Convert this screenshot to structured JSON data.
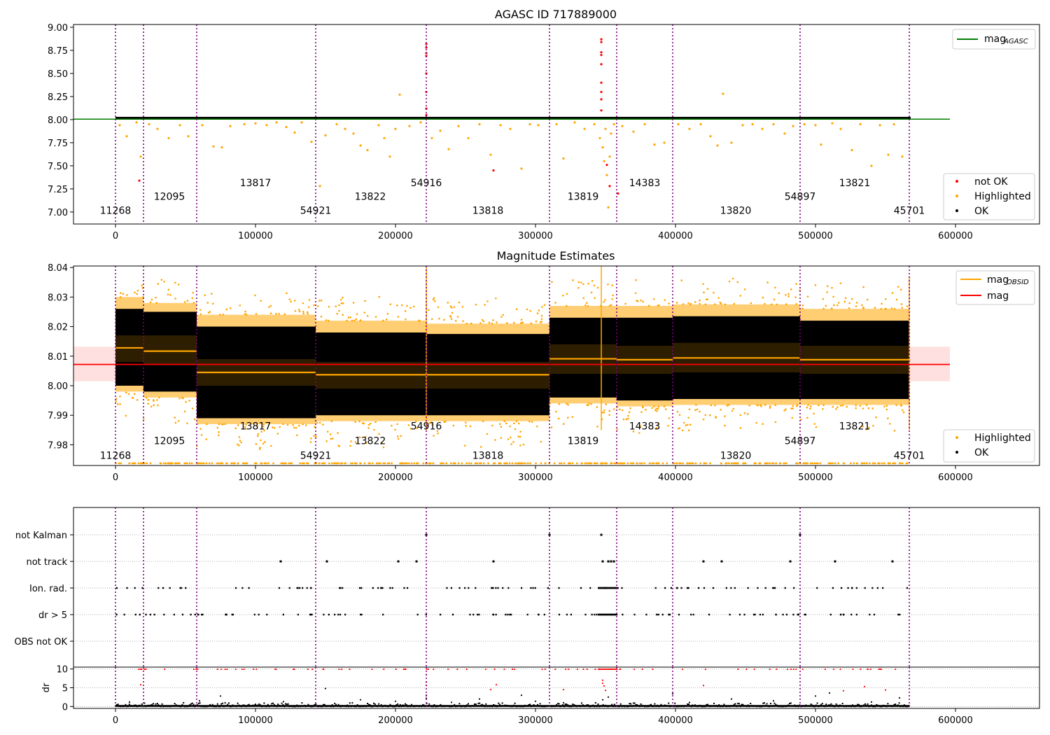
{
  "chart_data": [
    {
      "type": "scatter",
      "title": "AGASC ID 717889000",
      "xlim": [
        -30000,
        660000
      ],
      "ylim": [
        6.87,
        9.03
      ],
      "xticks": [
        0,
        100000,
        200000,
        300000,
        400000,
        500000,
        600000
      ],
      "xtick_labels": [
        "0",
        "100000",
        "200000",
        "300000",
        "400000",
        "500000",
        "600000"
      ],
      "yticks": [
        7.0,
        7.25,
        7.5,
        7.75,
        8.0,
        8.25,
        8.5,
        8.75,
        9.0
      ],
      "ytick_labels": [
        "7.00",
        "7.25",
        "7.50",
        "7.75",
        "8.00",
        "8.25",
        "8.50",
        "8.75",
        "9.00"
      ],
      "grid": false,
      "x_extent": [
        0,
        568000
      ],
      "ok_band": [
        8.0,
        8.03
      ],
      "line_legend": [
        {
          "label": "mag",
          "sub": "AGASC",
          "color": "#008000",
          "y": 8.005,
          "x": [
            -30000,
            596000
          ]
        }
      ],
      "point_legend": [
        {
          "label": "not OK",
          "color": "#ff0000"
        },
        {
          "label": "Highlighted",
          "color": "#ffa500"
        },
        {
          "label": "OK",
          "color": "#000000"
        }
      ],
      "highlighted_points": [
        [
          3000,
          7.94
        ],
        [
          8000,
          7.82
        ],
        [
          15000,
          7.97
        ],
        [
          18000,
          7.6
        ],
        [
          24000,
          7.95
        ],
        [
          30000,
          7.9
        ],
        [
          38000,
          7.8
        ],
        [
          46000,
          7.94
        ],
        [
          52000,
          7.82
        ],
        [
          62000,
          7.94
        ],
        [
          70000,
          7.71
        ],
        [
          76000,
          7.7
        ],
        [
          82000,
          7.93
        ],
        [
          92000,
          7.95
        ],
        [
          100000,
          7.96
        ],
        [
          108000,
          7.94
        ],
        [
          115000,
          7.97
        ],
        [
          122000,
          7.92
        ],
        [
          128000,
          7.86
        ],
        [
          133000,
          7.97
        ],
        [
          140000,
          7.76
        ],
        [
          146000,
          7.28
        ],
        [
          150000,
          7.83
        ],
        [
          158000,
          7.95
        ],
        [
          164000,
          7.9
        ],
        [
          170000,
          7.85
        ],
        [
          175000,
          7.72
        ],
        [
          180000,
          7.67
        ],
        [
          188000,
          7.94
        ],
        [
          192000,
          7.8
        ],
        [
          196000,
          7.6
        ],
        [
          200000,
          7.9
        ],
        [
          203000,
          8.27
        ],
        [
          210000,
          7.93
        ],
        [
          218000,
          7.97
        ],
        [
          226000,
          7.8
        ],
        [
          232000,
          7.88
        ],
        [
          238000,
          7.68
        ],
        [
          245000,
          7.93
        ],
        [
          252000,
          7.8
        ],
        [
          260000,
          7.95
        ],
        [
          268000,
          7.62
        ],
        [
          275000,
          7.94
        ],
        [
          282000,
          7.9
        ],
        [
          290000,
          7.47
        ],
        [
          296000,
          7.95
        ],
        [
          302000,
          7.94
        ],
        [
          315000,
          7.95
        ],
        [
          320000,
          7.58
        ],
        [
          328000,
          7.97
        ],
        [
          335000,
          7.9
        ],
        [
          342000,
          7.95
        ],
        [
          346000,
          7.8
        ],
        [
          348000,
          7.7
        ],
        [
          349000,
          7.55
        ],
        [
          350000,
          7.9
        ],
        [
          351000,
          7.4
        ],
        [
          352000,
          7.05
        ],
        [
          353000,
          7.6
        ],
        [
          354000,
          7.85
        ],
        [
          356000,
          7.95
        ],
        [
          362000,
          7.93
        ],
        [
          370000,
          7.87
        ],
        [
          378000,
          7.95
        ],
        [
          385000,
          7.73
        ],
        [
          392000,
          7.75
        ],
        [
          402000,
          7.95
        ],
        [
          410000,
          7.9
        ],
        [
          418000,
          7.95
        ],
        [
          425000,
          7.82
        ],
        [
          430000,
          7.72
        ],
        [
          434000,
          8.28
        ],
        [
          440000,
          7.75
        ],
        [
          448000,
          7.94
        ],
        [
          455000,
          7.95
        ],
        [
          462000,
          7.9
        ],
        [
          470000,
          7.95
        ],
        [
          478000,
          7.85
        ],
        [
          484000,
          7.93
        ],
        [
          492000,
          7.95
        ],
        [
          500000,
          7.94
        ],
        [
          504000,
          7.73
        ],
        [
          512000,
          7.96
        ],
        [
          518000,
          7.9
        ],
        [
          526000,
          7.67
        ],
        [
          532000,
          7.95
        ],
        [
          540000,
          7.5
        ],
        [
          546000,
          7.94
        ],
        [
          552000,
          7.62
        ],
        [
          556000,
          7.95
        ],
        [
          562000,
          7.6
        ]
      ],
      "notok_points": [
        [
          17000,
          7.34
        ],
        [
          270000,
          7.45
        ],
        [
          222000,
          8.82
        ],
        [
          222000,
          8.78
        ],
        [
          222000,
          8.72
        ],
        [
          222000,
          8.69
        ],
        [
          222000,
          8.5
        ],
        [
          222000,
          8.3
        ],
        [
          222000,
          8.12
        ],
        [
          222000,
          8.05
        ],
        [
          347000,
          8.87
        ],
        [
          347000,
          8.84
        ],
        [
          347000,
          8.73
        ],
        [
          347000,
          8.7
        ],
        [
          347000,
          8.6
        ],
        [
          347000,
          8.4
        ],
        [
          347000,
          8.3
        ],
        [
          347000,
          8.22
        ],
        [
          347000,
          8.1
        ],
        [
          351000,
          7.51
        ],
        [
          353000,
          7.28
        ],
        [
          359000,
          7.2
        ]
      ],
      "obsid_lines_x": [
        0,
        20000,
        58000,
        143000,
        222000,
        310000,
        358000,
        398000,
        489000,
        567000
      ],
      "obsid_labels": [
        {
          "x": 0,
          "y": 6.98,
          "text": "11268"
        },
        {
          "x": 38500,
          "y": 7.13,
          "text": "12095"
        },
        {
          "x": 100000,
          "y": 7.28,
          "text": "13817"
        },
        {
          "x": 143000,
          "y": 6.98,
          "text": "54921"
        },
        {
          "x": 182000,
          "y": 7.13,
          "text": "13822"
        },
        {
          "x": 222000,
          "y": 7.28,
          "text": "54916"
        },
        {
          "x": 266000,
          "y": 6.98,
          "text": "13818"
        },
        {
          "x": 334000,
          "y": 7.13,
          "text": "13819"
        },
        {
          "x": 378000,
          "y": 7.28,
          "text": "14383"
        },
        {
          "x": 443000,
          "y": 6.98,
          "text": "13820"
        },
        {
          "x": 489000,
          "y": 7.13,
          "text": "54897"
        },
        {
          "x": 528000,
          "y": 7.28,
          "text": "13821"
        },
        {
          "x": 567000,
          "y": 6.98,
          "text": "45701"
        }
      ]
    },
    {
      "type": "scatter",
      "title": "Magnitude Estimates",
      "xlim": [
        -30000,
        660000
      ],
      "ylim": [
        7.973,
        8.0405
      ],
      "xticks": [
        0,
        100000,
        200000,
        300000,
        400000,
        500000,
        600000
      ],
      "xtick_labels": [
        "0",
        "100000",
        "200000",
        "300000",
        "400000",
        "500000",
        "600000"
      ],
      "yticks": [
        7.98,
        7.99,
        8.0,
        8.01,
        8.02,
        8.03,
        8.04
      ],
      "ytick_labels": [
        "7.98",
        "7.99",
        "8.00",
        "8.01",
        "8.02",
        "8.03",
        "8.04"
      ],
      "grid": false,
      "mean_mag": {
        "value": 8.0072,
        "band": [
          8.0015,
          8.0132
        ],
        "x": [
          -30000,
          596000
        ],
        "color": "#ff0000"
      },
      "segments": [
        {
          "x0": 0,
          "x1": 20000,
          "ok": [
            8.0,
            8.026
          ],
          "hl": [
            7.998,
            8.03
          ],
          "mag": 8.0128,
          "band": [
            8.008,
            8.017
          ]
        },
        {
          "x0": 20000,
          "x1": 58000,
          "ok": [
            7.998,
            8.025
          ],
          "hl": [
            7.996,
            8.028
          ],
          "mag": 8.0117,
          "band": [
            8.007,
            8.017
          ]
        },
        {
          "x0": 58000,
          "x1": 143000,
          "ok": [
            7.989,
            8.02
          ],
          "hl": [
            7.987,
            8.024
          ],
          "mag": 8.0045,
          "band": [
            8.0,
            8.009
          ]
        },
        {
          "x0": 143000,
          "x1": 222000,
          "ok": [
            7.99,
            8.018
          ],
          "hl": [
            7.988,
            8.022
          ],
          "mag": 8.0037,
          "band": [
            7.999,
            8.008
          ]
        },
        {
          "x0": 222000,
          "x1": 310000,
          "ok": [
            7.99,
            8.0175
          ],
          "hl": [
            7.988,
            8.021
          ],
          "mag": 8.0037,
          "band": [
            7.999,
            8.008
          ]
        },
        {
          "x0": 310000,
          "x1": 358000,
          "ok": [
            7.996,
            8.023
          ],
          "hl": [
            7.994,
            8.027
          ],
          "mag": 8.0091,
          "band": [
            8.004,
            8.014
          ]
        },
        {
          "x0": 358000,
          "x1": 398000,
          "ok": [
            7.995,
            8.023
          ],
          "hl": [
            7.993,
            8.027
          ],
          "mag": 8.0088,
          "band": [
            8.004,
            8.0135
          ]
        },
        {
          "x0": 398000,
          "x1": 489000,
          "ok": [
            7.9955,
            8.0235
          ],
          "hl": [
            7.9935,
            8.0275
          ],
          "mag": 8.0094,
          "band": [
            8.0045,
            8.0145
          ]
        },
        {
          "x0": 489000,
          "x1": 567000,
          "ok": [
            7.9955,
            8.022
          ],
          "hl": [
            7.9935,
            8.026
          ],
          "mag": 8.0088,
          "band": [
            8.004,
            8.0135
          ]
        }
      ],
      "line_legend": [
        {
          "label": "mag",
          "sub": "OBSID",
          "color": "#ffa500"
        },
        {
          "label": "mag",
          "sub": "",
          "color": "#ff0000"
        }
      ],
      "point_legend": [
        {
          "label": "Highlighted",
          "color": "#ffa500"
        },
        {
          "label": "OK",
          "color": "#000000"
        }
      ],
      "obsid_lines_x": [
        0,
        20000,
        58000,
        143000,
        222000,
        310000,
        358000,
        398000,
        489000,
        567000
      ],
      "obsid_labels": [
        {
          "x": 0,
          "y": 7.9752,
          "text": "11268"
        },
        {
          "x": 38500,
          "y": 7.9802,
          "text": "12095"
        },
        {
          "x": 100000,
          "y": 7.9852,
          "text": "13817"
        },
        {
          "x": 143000,
          "y": 7.9752,
          "text": "54921"
        },
        {
          "x": 182000,
          "y": 7.9802,
          "text": "13822"
        },
        {
          "x": 222000,
          "y": 7.9852,
          "text": "54916"
        },
        {
          "x": 266000,
          "y": 7.9752,
          "text": "13818"
        },
        {
          "x": 334000,
          "y": 7.9802,
          "text": "13819"
        },
        {
          "x": 378000,
          "y": 7.9852,
          "text": "14383"
        },
        {
          "x": 443000,
          "y": 7.9752,
          "text": "13820"
        },
        {
          "x": 489000,
          "y": 7.9802,
          "text": "54897"
        },
        {
          "x": 528000,
          "y": 7.9852,
          "text": "13821"
        },
        {
          "x": 567000,
          "y": 7.9752,
          "text": "45701"
        }
      ]
    },
    {
      "type": "scatter",
      "title": "",
      "xlim": [
        -30000,
        660000
      ],
      "categories": [
        "not Kalman",
        "not track",
        "Ion. rad.",
        "dr > 5",
        "OBS not OK"
      ],
      "grid": true,
      "not_kalman_x": [
        222000,
        310000,
        347000,
        489000
      ],
      "not_track_x": [
        118000,
        151000,
        202000,
        215000,
        270000,
        348000,
        352000,
        354000,
        356000,
        420000,
        433000,
        482000,
        514000,
        555000
      ],
      "flag_dense_ranges": [
        [
          0,
          20000
        ],
        [
          20000,
          58000
        ],
        [
          58000,
          143000
        ],
        [
          143000,
          222000
        ],
        [
          222000,
          310000
        ],
        [
          310000,
          358000
        ],
        [
          358000,
          398000
        ],
        [
          398000,
          489000
        ],
        [
          489000,
          567000
        ]
      ],
      "obsid_lines_x": [
        0,
        20000,
        58000,
        143000,
        222000,
        310000,
        358000,
        398000,
        489000,
        567000
      ]
    },
    {
      "type": "scatter",
      "title": "",
      "ylabel": "dr",
      "xlim": [
        -30000,
        660000
      ],
      "ylim": [
        -0.5,
        10.5
      ],
      "yticks": [
        0,
        5,
        10
      ],
      "ytick_labels": [
        "0",
        "5",
        "10"
      ],
      "xticks": [
        0,
        100000,
        200000,
        300000,
        400000,
        500000,
        600000
      ],
      "xtick_labels": [
        "0",
        "100000",
        "200000",
        "300000",
        "400000",
        "500000",
        "600000"
      ],
      "grid": true,
      "dr_cap": 10,
      "dr_red_points": [
        [
          18000,
          5.8
        ],
        [
          222000,
          8.5
        ],
        [
          222000,
          6.5
        ],
        [
          222000,
          5.6
        ],
        [
          268000,
          4.5
        ],
        [
          272000,
          5.8
        ],
        [
          348000,
          7.0
        ],
        [
          348000,
          6.2
        ],
        [
          349000,
          5.5
        ],
        [
          350000,
          4.3
        ],
        [
          320000,
          4.5
        ],
        [
          420000,
          5.6
        ],
        [
          520000,
          4.2
        ],
        [
          535000,
          5.3
        ],
        [
          550000,
          4.4
        ]
      ],
      "dr_black_points": [
        [
          10000,
          1.2
        ],
        [
          30000,
          0.8
        ],
        [
          60000,
          1.5
        ],
        [
          75000,
          2.8
        ],
        [
          100000,
          0.6
        ],
        [
          120000,
          1.3
        ],
        [
          150000,
          4.8
        ],
        [
          175000,
          1.8
        ],
        [
          200000,
          1.4
        ],
        [
          222000,
          3.0
        ],
        [
          222000,
          2.2
        ],
        [
          240000,
          1.1
        ],
        [
          260000,
          2.0
        ],
        [
          290000,
          3.0
        ],
        [
          300000,
          1.4
        ],
        [
          320000,
          1.0
        ],
        [
          348000,
          1.8
        ],
        [
          352000,
          2.5
        ],
        [
          370000,
          0.9
        ],
        [
          398000,
          3.4
        ],
        [
          410000,
          1.1
        ],
        [
          440000,
          2.0
        ],
        [
          470000,
          1.5
        ],
        [
          500000,
          2.8
        ],
        [
          510000,
          3.6
        ],
        [
          540000,
          1.2
        ],
        [
          560000,
          2.3
        ]
      ],
      "obsid_lines_x": [
        0,
        20000,
        58000,
        143000,
        222000,
        310000,
        358000,
        398000,
        489000,
        567000
      ]
    }
  ]
}
